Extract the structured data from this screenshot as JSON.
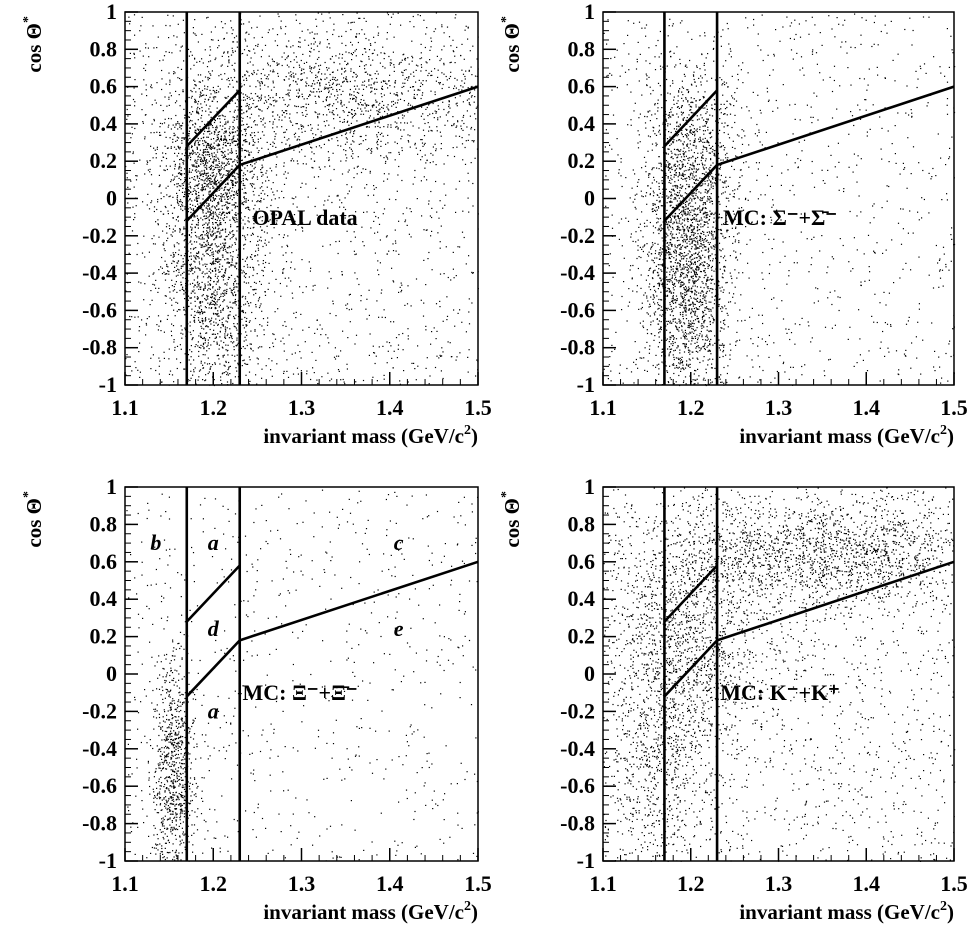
{
  "chart_data": [
    {
      "type": "scatter",
      "panel_label": "OPAL data",
      "xlabel": "invariant mass (GeV/c",
      "xlabel_sup": "2",
      "xlabel_tail": ")",
      "ylabel": "cos Θ",
      "ylabel_sup": "*",
      "xlim": [
        1.1,
        1.5
      ],
      "ylim": [
        -1,
        1
      ],
      "xticks": [
        "1.1",
        "1.2",
        "1.3",
        "1.4",
        "1.5"
      ],
      "yticks": [
        "1",
        "0.8",
        "0.6",
        "0.4",
        "0.2",
        "0",
        "-0.2",
        "-0.4",
        "-0.6",
        "-0.8",
        "-1"
      ],
      "cut_lines": [
        {
          "x": [
            1.17,
            1.17
          ],
          "y": [
            -1,
            1
          ]
        },
        {
          "x": [
            1.23,
            1.23
          ],
          "y": [
            -1,
            1
          ]
        },
        {
          "x": [
            1.17,
            1.23
          ],
          "y": [
            0.28,
            0.58
          ]
        },
        {
          "x": [
            1.17,
            1.23
          ],
          "y": [
            -0.12,
            0.18
          ]
        },
        {
          "x": [
            1.23,
            1.5
          ],
          "y": [
            0.18,
            0.6
          ]
        }
      ],
      "density_clusters": [
        {
          "cx": 1.2,
          "cy": -0.3,
          "sx": 0.03,
          "sy": 0.45,
          "weight": 0.35
        },
        {
          "cx": 1.2,
          "cy": 0.2,
          "sx": 0.03,
          "sy": 0.2,
          "weight": 0.15
        },
        {
          "cx": 1.35,
          "cy": 0.55,
          "sx": 0.1,
          "sy": 0.2,
          "weight": 0.25
        },
        {
          "cx": 1.3,
          "cy": 0.0,
          "sx": 0.2,
          "sy": 1.0,
          "weight": 0.25
        }
      ],
      "n_points": 5200
    },
    {
      "type": "scatter",
      "panel_label": "MC: Σ⁻+Σ̄⁻",
      "xlabel": "invariant mass (GeV/c",
      "xlabel_sup": "2",
      "xlabel_tail": ")",
      "ylabel": "cos Θ",
      "ylabel_sup": "*",
      "xlim": [
        1.1,
        1.5
      ],
      "ylim": [
        -1,
        1
      ],
      "xticks": [
        "1.1",
        "1.2",
        "1.3",
        "1.4",
        "1.5"
      ],
      "yticks": [
        "1",
        "0.8",
        "0.6",
        "0.4",
        "0.2",
        "0",
        "-0.2",
        "-0.4",
        "-0.6",
        "-0.8",
        "-1"
      ],
      "cut_lines": [
        {
          "x": [
            1.17,
            1.17
          ],
          "y": [
            -1,
            1
          ]
        },
        {
          "x": [
            1.23,
            1.23
          ],
          "y": [
            -1,
            1
          ]
        },
        {
          "x": [
            1.17,
            1.23
          ],
          "y": [
            0.28,
            0.58
          ]
        },
        {
          "x": [
            1.17,
            1.23
          ],
          "y": [
            -0.12,
            0.18
          ]
        },
        {
          "x": [
            1.23,
            1.5
          ],
          "y": [
            0.18,
            0.6
          ]
        }
      ],
      "density_clusters": [
        {
          "cx": 1.195,
          "cy": -0.35,
          "sx": 0.025,
          "sy": 0.4,
          "weight": 0.6
        },
        {
          "cx": 1.2,
          "cy": 0.3,
          "sx": 0.03,
          "sy": 0.25,
          "weight": 0.15
        },
        {
          "cx": 1.3,
          "cy": 0.0,
          "sx": 0.2,
          "sy": 1.0,
          "weight": 0.25
        }
      ],
      "n_points": 3600
    },
    {
      "type": "scatter",
      "panel_label": "MC: Ξ⁻+Ξ̄⁻",
      "xlabel": "invariant mass (GeV/c",
      "xlabel_sup": "2",
      "xlabel_tail": ")",
      "ylabel": "cos Θ",
      "ylabel_sup": "*",
      "xlim": [
        1.1,
        1.5
      ],
      "ylim": [
        -1,
        1
      ],
      "xticks": [
        "1.1",
        "1.2",
        "1.3",
        "1.4",
        "1.5"
      ],
      "yticks": [
        "1",
        "0.8",
        "0.6",
        "0.4",
        "0.2",
        "0",
        "-0.2",
        "-0.4",
        "-0.6",
        "-0.8",
        "-1"
      ],
      "cut_lines": [
        {
          "x": [
            1.17,
            1.17
          ],
          "y": [
            -1,
            1
          ]
        },
        {
          "x": [
            1.23,
            1.23
          ],
          "y": [
            -1,
            1
          ]
        },
        {
          "x": [
            1.17,
            1.23
          ],
          "y": [
            0.28,
            0.58
          ]
        },
        {
          "x": [
            1.17,
            1.23
          ],
          "y": [
            -0.12,
            0.18
          ]
        },
        {
          "x": [
            1.23,
            1.5
          ],
          "y": [
            0.18,
            0.6
          ]
        }
      ],
      "region_labels": [
        {
          "text": "b",
          "x": 1.135,
          "y": 0.7
        },
        {
          "text": "a",
          "x": 1.2,
          "y": 0.7
        },
        {
          "text": "d",
          "x": 1.2,
          "y": 0.24
        },
        {
          "text": "a",
          "x": 1.2,
          "y": -0.2
        },
        {
          "text": "c",
          "x": 1.41,
          "y": 0.7
        },
        {
          "text": "e",
          "x": 1.41,
          "y": 0.24
        }
      ],
      "density_clusters": [
        {
          "cx": 1.155,
          "cy": -0.5,
          "sx": 0.012,
          "sy": 0.3,
          "weight": 0.55
        },
        {
          "cx": 1.3,
          "cy": 0.0,
          "sx": 0.2,
          "sy": 1.0,
          "weight": 0.45
        }
      ],
      "n_points": 1500
    },
    {
      "type": "scatter",
      "panel_label": "MC: K⁻+K⁺",
      "xlabel": "invariant mass (GeV/c",
      "xlabel_sup": "2",
      "xlabel_tail": ")",
      "ylabel": "cos Θ",
      "ylabel_sup": "*",
      "xlim": [
        1.1,
        1.5
      ],
      "ylim": [
        -1,
        1
      ],
      "xticks": [
        "1.1",
        "1.2",
        "1.3",
        "1.4",
        "1.5"
      ],
      "yticks": [
        "1",
        "0.8",
        "0.6",
        "0.4",
        "0.2",
        "0",
        "-0.2",
        "-0.4",
        "-0.6",
        "-0.8",
        "-1"
      ],
      "cut_lines": [
        {
          "x": [
            1.17,
            1.17
          ],
          "y": [
            -1,
            1
          ]
        },
        {
          "x": [
            1.23,
            1.23
          ],
          "y": [
            -1,
            1
          ]
        },
        {
          "x": [
            1.17,
            1.23
          ],
          "y": [
            0.28,
            0.58
          ]
        },
        {
          "x": [
            1.17,
            1.23
          ],
          "y": [
            -0.12,
            0.18
          ]
        },
        {
          "x": [
            1.23,
            1.5
          ],
          "y": [
            0.18,
            0.6
          ]
        }
      ],
      "density_clusters": [
        {
          "cx": 1.35,
          "cy": 0.65,
          "sx": 0.1,
          "sy": 0.15,
          "weight": 0.35
        },
        {
          "cx": 1.2,
          "cy": 0.2,
          "sx": 0.04,
          "sy": 0.3,
          "weight": 0.2
        },
        {
          "cx": 1.16,
          "cy": -0.4,
          "sx": 0.03,
          "sy": 0.4,
          "weight": 0.15
        },
        {
          "cx": 1.3,
          "cy": 0.0,
          "sx": 0.2,
          "sy": 1.0,
          "weight": 0.3
        }
      ],
      "n_points": 5000
    }
  ]
}
